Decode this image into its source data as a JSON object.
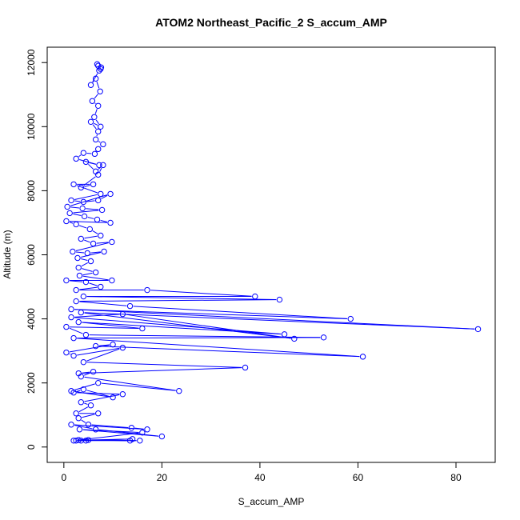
{
  "chart_data": {
    "type": "line",
    "title": "ATOM2 Northeast_Pacific_2 S_accum_AMP",
    "xlabel": "S_accum_AMP",
    "ylabel": "Altitude (m)",
    "xlim": [
      -3.4,
      88
    ],
    "ylim": [
      -480,
      12480
    ],
    "x_ticks": [
      0,
      20,
      40,
      60,
      80
    ],
    "y_ticks": [
      0,
      2000,
      4000,
      6000,
      8000,
      10000,
      12000
    ],
    "grid": false,
    "legend": "none",
    "marker": "open-circle",
    "color": "#0000ff",
    "series": [
      {
        "points": [
          [
            7,
            11900
          ],
          [
            7.5,
            11800
          ],
          [
            6.8,
            11950
          ],
          [
            7.6,
            11850
          ],
          [
            7.2,
            11750
          ],
          [
            5.5,
            11300
          ],
          [
            6.5,
            11500
          ],
          [
            7.4,
            11100
          ],
          [
            5.8,
            10800
          ],
          [
            7.0,
            10650
          ],
          [
            6.2,
            10300
          ],
          [
            7.5,
            10000
          ],
          [
            5.5,
            10150
          ],
          [
            7.0,
            9850
          ],
          [
            6.5,
            9600
          ],
          [
            8.0,
            9450
          ],
          [
            7.0,
            9300
          ],
          [
            6.3,
            9150
          ],
          [
            4.0,
            9180
          ],
          [
            2.5,
            9000
          ],
          [
            7.2,
            8800
          ],
          [
            4.5,
            8900
          ],
          [
            6.5,
            8600
          ],
          [
            8.0,
            8800
          ],
          [
            7.0,
            8500
          ],
          [
            3.5,
            8100
          ],
          [
            6.0,
            8200
          ],
          [
            2.0,
            8200
          ],
          [
            7.5,
            7900
          ],
          [
            1.5,
            7700
          ],
          [
            4.0,
            7650
          ],
          [
            7.0,
            7700
          ],
          [
            9.5,
            7900
          ],
          [
            0.7,
            7500
          ],
          [
            3.8,
            7450
          ],
          [
            7.8,
            7400
          ],
          [
            1.2,
            7300
          ],
          [
            4.2,
            7200
          ],
          [
            6.8,
            7100
          ],
          [
            9.5,
            7000
          ],
          [
            0.5,
            7050
          ],
          [
            2.5,
            6950
          ],
          [
            5.3,
            6800
          ],
          [
            7.5,
            6600
          ],
          [
            3.5,
            6500
          ],
          [
            6.0,
            6350
          ],
          [
            9.8,
            6400
          ],
          [
            1.8,
            6100
          ],
          [
            4.8,
            6050
          ],
          [
            8.2,
            6100
          ],
          [
            2.8,
            5900
          ],
          [
            5.5,
            5800
          ],
          [
            3.0,
            5600
          ],
          [
            6.5,
            5450
          ],
          [
            3.2,
            5350
          ],
          [
            9.8,
            5200
          ],
          [
            0.5,
            5200
          ],
          [
            4.5,
            5150
          ],
          [
            7.5,
            5000
          ],
          [
            2.5,
            4900
          ],
          [
            17.0,
            4900
          ],
          [
            39.0,
            4700
          ],
          [
            4.0,
            4700
          ],
          [
            44.0,
            4600
          ],
          [
            2.5,
            4550
          ],
          [
            13.5,
            4400
          ],
          [
            58.5,
            4000
          ],
          [
            1.5,
            4300
          ],
          [
            84.5,
            3680
          ],
          [
            3.5,
            4200
          ],
          [
            47.0,
            3380
          ],
          [
            12.0,
            4150
          ],
          [
            1.5,
            4050
          ],
          [
            45.0,
            3520
          ],
          [
            3.0,
            3900
          ],
          [
            16.0,
            3700
          ],
          [
            0.5,
            3750
          ],
          [
            4.5,
            3500
          ],
          [
            53.0,
            3420
          ],
          [
            2.0,
            3400
          ],
          [
            61.0,
            2820
          ],
          [
            6.5,
            3150
          ],
          [
            10.0,
            3200
          ],
          [
            0.5,
            2950
          ],
          [
            2.0,
            2850
          ],
          [
            12.0,
            3100
          ],
          [
            4.0,
            2650
          ],
          [
            37.0,
            2480
          ],
          [
            3.0,
            2300
          ],
          [
            6.0,
            2350
          ],
          [
            3.5,
            2200
          ],
          [
            23.5,
            1750
          ],
          [
            7.0,
            2000
          ],
          [
            1.5,
            1750
          ],
          [
            10.0,
            1550
          ],
          [
            4.0,
            1800
          ],
          [
            2.0,
            1700
          ],
          [
            12.0,
            1650
          ],
          [
            3.5,
            1400
          ],
          [
            5.5,
            1300
          ],
          [
            2.5,
            1050
          ],
          [
            7.0,
            1050
          ],
          [
            3.0,
            900
          ],
          [
            5.0,
            700
          ],
          [
            13.8,
            600
          ],
          [
            17.0,
            550
          ],
          [
            1.5,
            700
          ],
          [
            6.5,
            550
          ],
          [
            20.0,
            330
          ],
          [
            3.2,
            550
          ],
          [
            16.0,
            450
          ],
          [
            2.0,
            200
          ],
          [
            15.5,
            200
          ],
          [
            3.0,
            220
          ],
          [
            13.5,
            200
          ],
          [
            5.0,
            220
          ],
          [
            14.0,
            250
          ],
          [
            3.5,
            200
          ],
          [
            4.5,
            200
          ],
          [
            2.5,
            200
          ]
        ]
      }
    ]
  }
}
